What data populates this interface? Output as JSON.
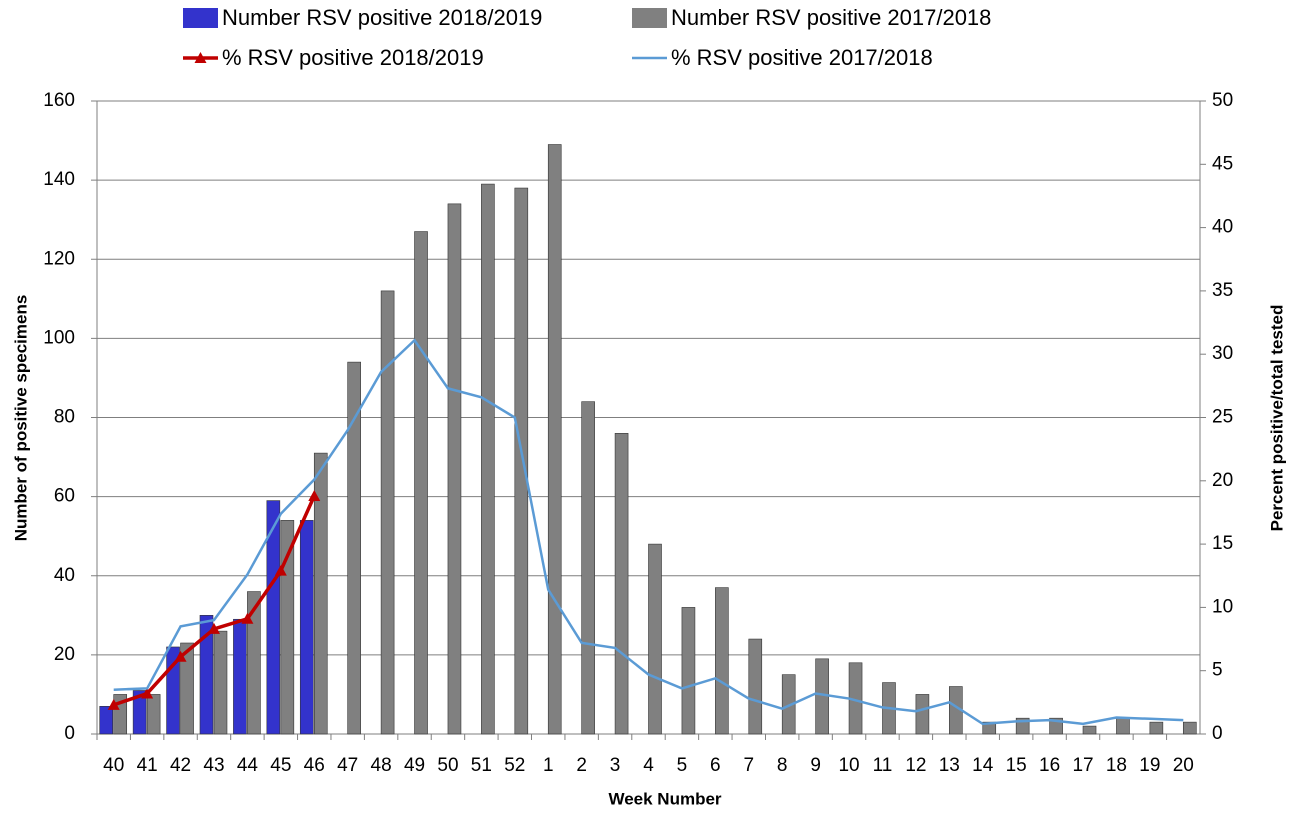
{
  "chart_data": {
    "type": "bar",
    "categories": [
      "40",
      "41",
      "42",
      "43",
      "44",
      "45",
      "46",
      "47",
      "48",
      "49",
      "50",
      "51",
      "52",
      "1",
      "2",
      "3",
      "4",
      "5",
      "6",
      "7",
      "8",
      "9",
      "10",
      "11",
      "12",
      "13",
      "14",
      "15",
      "16",
      "17",
      "18",
      "19",
      "20"
    ],
    "x_label": "Week Number",
    "y_label": "Number of positive specimens",
    "y2_label": "Percent positive/total tested",
    "ylim": [
      0,
      160
    ],
    "yticks": [
      0,
      20,
      40,
      60,
      80,
      100,
      120,
      140,
      160
    ],
    "y2lim": [
      0,
      50
    ],
    "y2ticks": [
      0,
      5,
      10,
      15,
      20,
      25,
      30,
      35,
      40,
      45,
      50
    ],
    "grid": true,
    "legend": "top",
    "series": [
      {
        "name": "Number RSV positive 2018/2019",
        "type": "bar",
        "color": "#3333cc",
        "values": [
          7,
          11,
          22,
          30,
          29,
          59,
          54,
          null,
          null,
          null,
          null,
          null,
          null,
          null,
          null,
          null,
          null,
          null,
          null,
          null,
          null,
          null,
          null,
          null,
          null,
          null,
          null,
          null,
          null,
          null,
          null,
          null,
          null
        ]
      },
      {
        "name": "Number RSV positive 2017/2018",
        "type": "bar",
        "color": "#808080",
        "values": [
          10,
          10,
          23,
          26,
          36,
          54,
          71,
          94,
          112,
          127,
          134,
          139,
          138,
          149,
          84,
          76,
          48,
          32,
          37,
          24,
          15,
          19,
          18,
          13,
          10,
          12,
          3,
          4,
          4,
          2,
          4,
          3,
          3
        ]
      },
      {
        "name": "% RSV positive 2018/2019",
        "type": "line",
        "axis": "y2",
        "color": "#c00000",
        "marker": "triangle",
        "values": [
          2.3,
          3.2,
          6.1,
          8.3,
          9.1,
          12.9,
          18.8,
          null,
          null,
          null,
          null,
          null,
          null,
          null,
          null,
          null,
          null,
          null,
          null,
          null,
          null,
          null,
          null,
          null,
          null,
          null,
          null,
          null,
          null,
          null,
          null,
          null,
          null
        ]
      },
      {
        "name": "% RSV positive 2017/2018",
        "type": "line",
        "axis": "y2",
        "color": "#5b9bd5",
        "values": [
          3.5,
          3.6,
          8.5,
          9.0,
          12.6,
          17.4,
          20.1,
          24.0,
          28.6,
          31.1,
          27.3,
          26.6,
          25.0,
          11.4,
          7.2,
          6.8,
          4.7,
          3.6,
          4.4,
          2.8,
          2.0,
          3.2,
          2.8,
          2.1,
          1.8,
          2.5,
          0.8,
          1.0,
          1.1,
          0.8,
          1.3,
          1.2,
          1.1
        ]
      }
    ]
  }
}
